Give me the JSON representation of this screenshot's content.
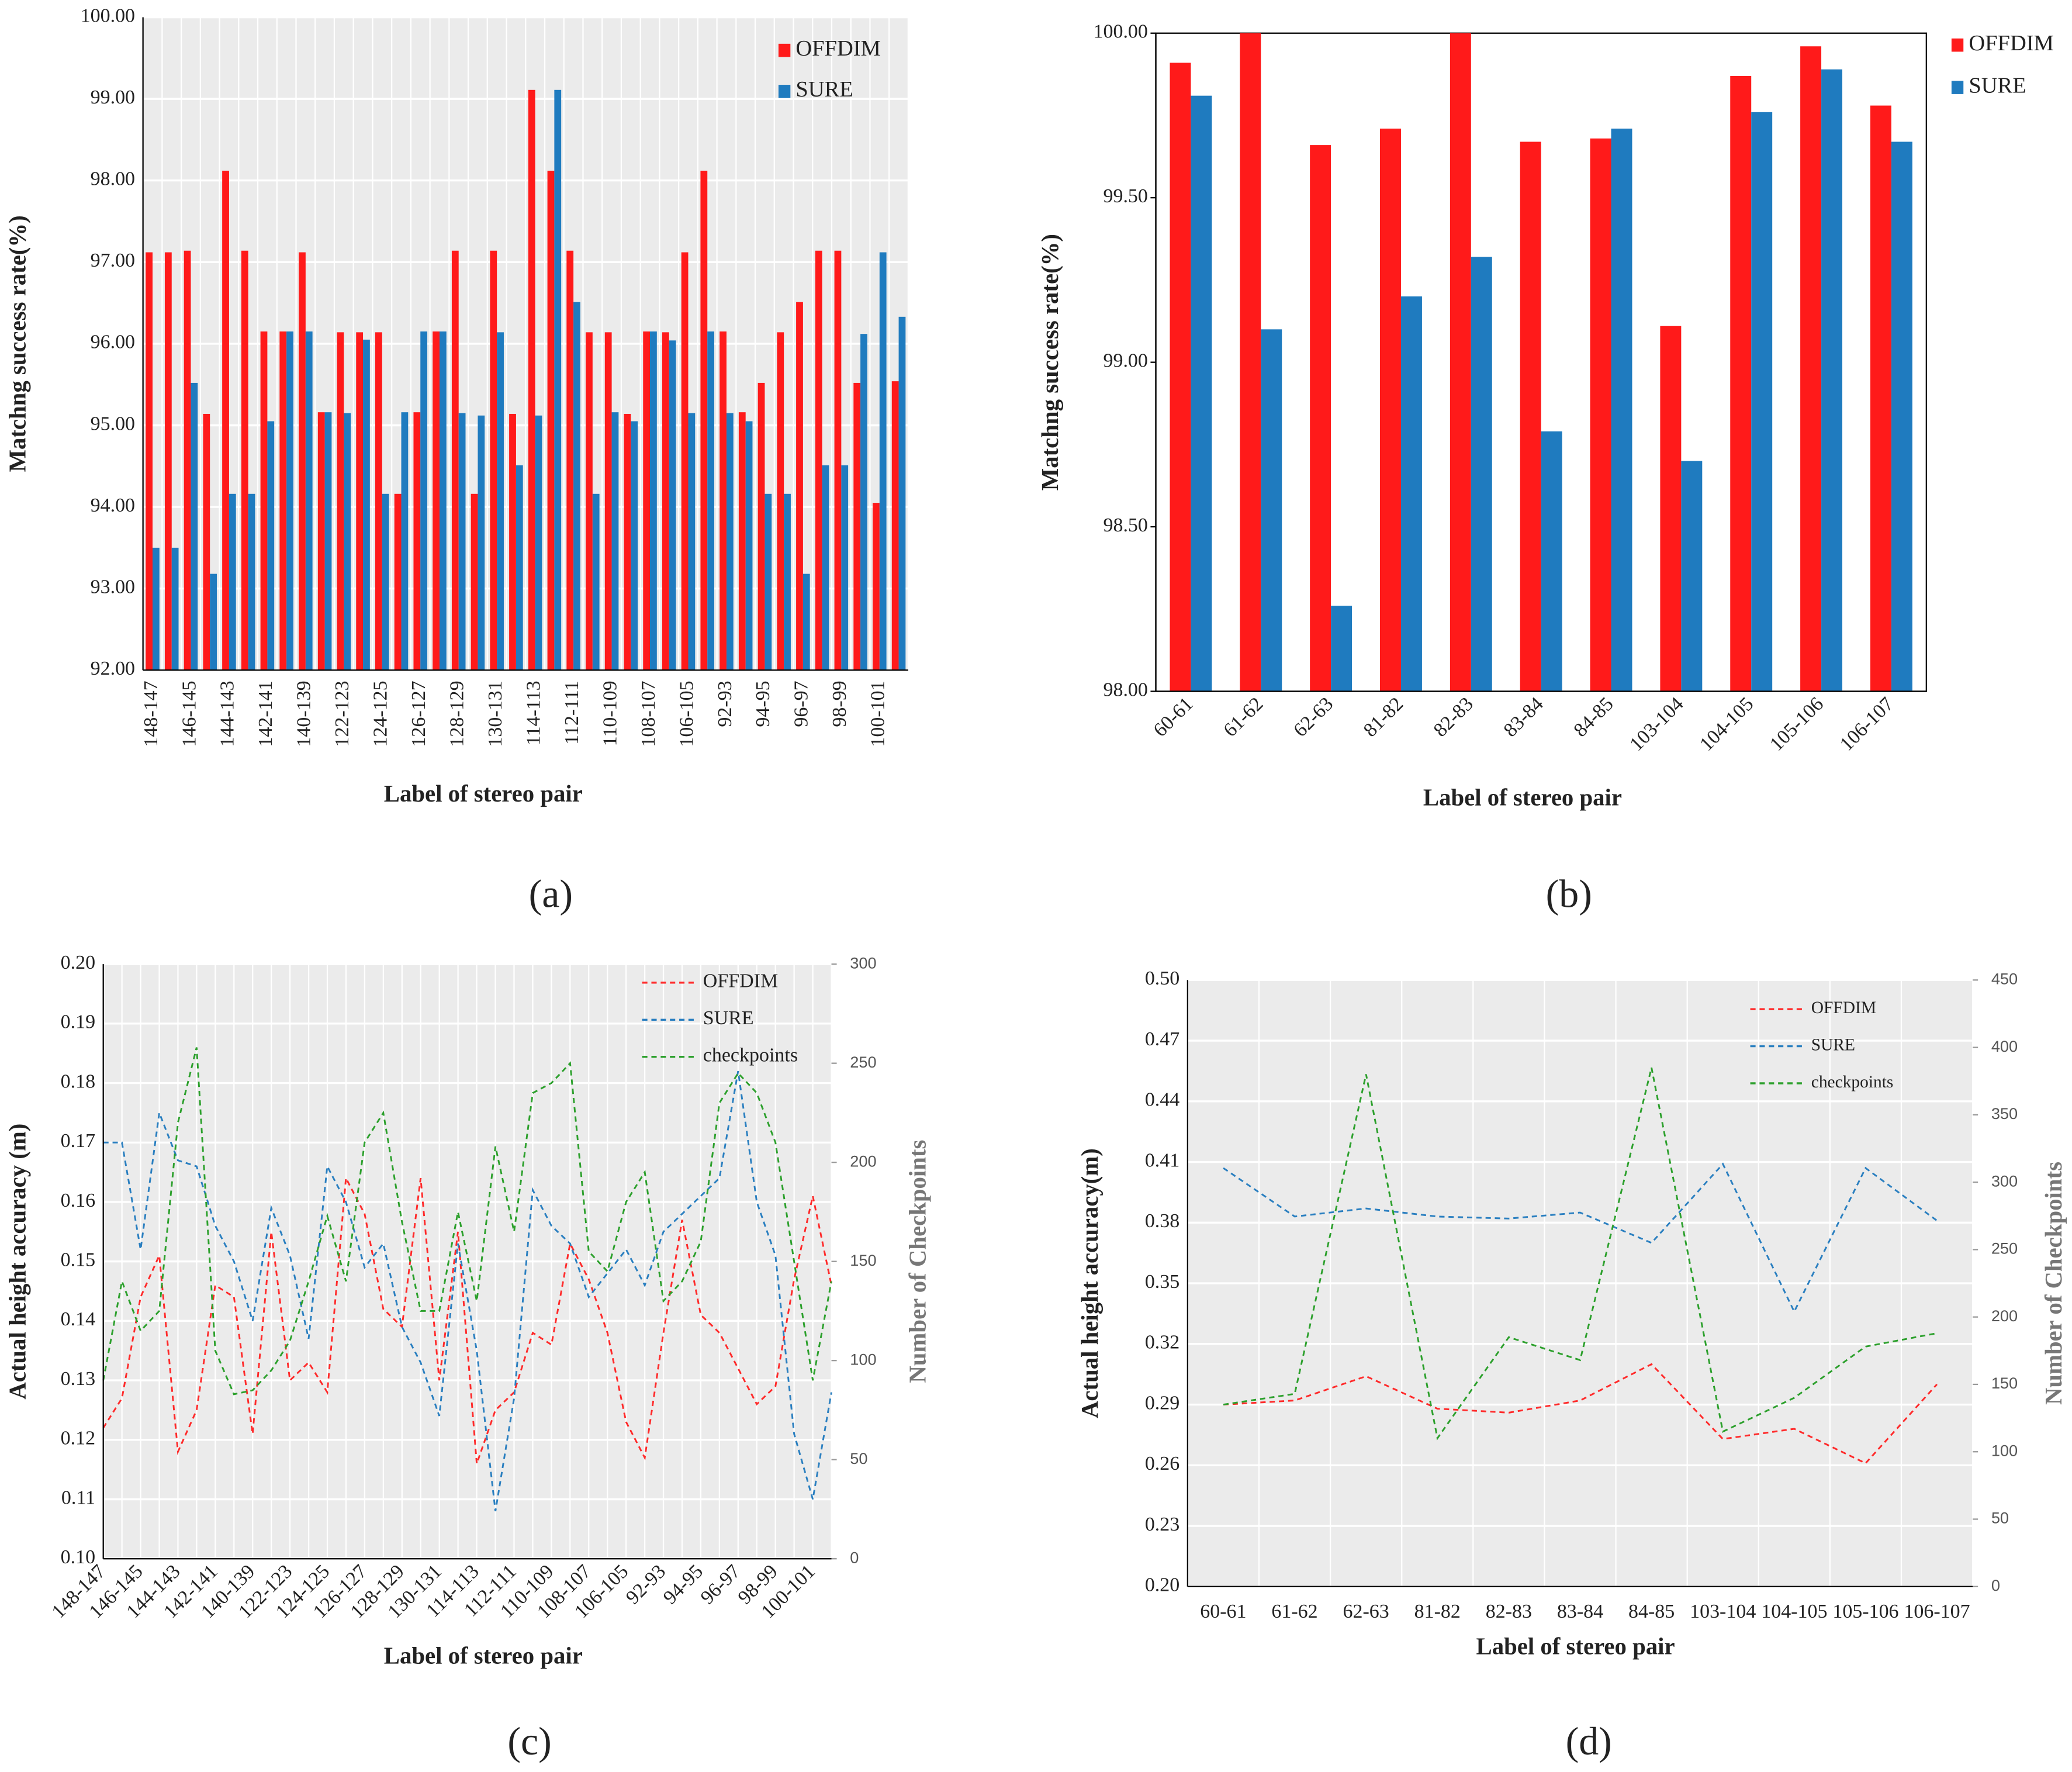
{
  "chart_data": [
    {
      "type": "bar",
      "label": "(a)",
      "xlabel": "Label of stereo pair",
      "ylabel": "Matchng success rate(%)",
      "grid": true,
      "legend": "upper right",
      "categories": [
        "148-147",
        null,
        "146-145",
        null,
        "144-143",
        null,
        "142-141",
        null,
        "140-139",
        null,
        "122-123",
        null,
        "124-125",
        null,
        "126-127",
        null,
        "128-129",
        null,
        "130-131",
        null,
        "114-113",
        null,
        "112-111",
        null,
        "110-109",
        null,
        "108-107",
        null,
        "106-105",
        null,
        "92-93",
        null,
        "94-95",
        null,
        "96-97",
        null,
        "98-99",
        null,
        "100-101",
        null
      ],
      "ylim": [
        92,
        100
      ],
      "yticks": [
        {
          "value": 92,
          "label": "92.00"
        },
        {
          "value": 93,
          "label": "93.00"
        },
        {
          "value": 94,
          "label": "94.00"
        },
        {
          "value": 95,
          "label": "95.00"
        },
        {
          "value": 96,
          "label": "96.00"
        },
        {
          "value": 97,
          "label": "97.00"
        },
        {
          "value": 98,
          "label": "98.00"
        },
        {
          "value": 99,
          "label": "99.00"
        },
        {
          "value": 100,
          "label": "100.00"
        }
      ],
      "series": [
        {
          "name": "OFFDIM",
          "color": "#ff1a1a",
          "values": [
            97.12,
            97.12,
            97.14,
            95.14,
            98.12,
            97.14,
            96.15,
            96.15,
            97.12,
            95.16,
            96.14,
            96.14,
            96.14,
            94.16,
            95.16,
            96.15,
            97.14,
            94.16,
            97.14,
            95.14,
            99.11,
            98.12,
            97.14,
            96.14,
            96.14,
            95.14,
            96.15,
            96.14,
            97.12,
            98.12,
            96.15,
            95.16,
            95.52,
            96.14,
            96.51,
            97.14,
            97.14,
            95.52,
            94.05,
            95.54
          ]
        },
        {
          "name": "SURE",
          "color": "#1f7bbf",
          "values": [
            93.5,
            93.5,
            95.52,
            93.18,
            94.16,
            94.16,
            95.05,
            96.15,
            96.15,
            95.16,
            95.15,
            96.05,
            94.16,
            95.16,
            96.15,
            96.15,
            95.15,
            95.12,
            96.14,
            94.51,
            95.12,
            99.11,
            96.51,
            94.16,
            95.16,
            95.05,
            96.15,
            96.04,
            95.15,
            96.15,
            95.15,
            95.05,
            94.16,
            94.16,
            93.18,
            94.51,
            94.51,
            96.12,
            97.12,
            96.33
          ]
        }
      ]
    },
    {
      "type": "bar",
      "label": "(b)",
      "xlabel": "Label of stereo pair",
      "ylabel": "Matchng success rate(%)",
      "grid": false,
      "legend": "upper right",
      "categories": [
        "60-61",
        "61-62",
        "62-63",
        "81-82",
        "82-83",
        "83-84",
        "84-85",
        "103-104",
        "104-105",
        "105-106",
        "106-107"
      ],
      "ylim": [
        98,
        100
      ],
      "yticks": [
        {
          "value": 98,
          "label": "98.00"
        },
        {
          "value": 98.5,
          "label": "98.50"
        },
        {
          "value": 99,
          "label": "99.00"
        },
        {
          "value": 99.5,
          "label": "99.50"
        },
        {
          "value": 100,
          "label": "100.00"
        }
      ],
      "series": [
        {
          "name": "OFFDIM",
          "color": "#ff1a1a",
          "values": [
            99.91,
            100.0,
            99.66,
            99.71,
            100.0,
            99.67,
            99.68,
            99.11,
            99.87,
            99.96,
            99.78
          ]
        },
        {
          "name": "SURE",
          "color": "#1f7bbf",
          "values": [
            99.81,
            99.1,
            98.26,
            99.2,
            99.32,
            98.79,
            99.71,
            98.7,
            99.76,
            99.89,
            99.67
          ]
        }
      ]
    },
    {
      "type": "line",
      "label": "(c)",
      "xlabel": "Label of stereo pair",
      "ylabel": "Actual height accuracy (m)",
      "y2label": "Number of Checkpoints",
      "grid": true,
      "legend": "upper right",
      "categories": [
        "148-147",
        null,
        "146-145",
        null,
        "144-143",
        null,
        "142-141",
        null,
        "140-139",
        null,
        "122-123",
        null,
        "124-125",
        null,
        "126-127",
        null,
        "128-129",
        null,
        "130-131",
        null,
        "114-113",
        null,
        "112-111",
        null,
        "110-109",
        null,
        "108-107",
        null,
        "106-105",
        null,
        "92-93",
        null,
        "94-95",
        null,
        "96-97",
        null,
        "98-99",
        null,
        "100-101",
        null
      ],
      "ylim": [
        0.1,
        0.2
      ],
      "yticks": [
        {
          "value": 0.1,
          "label": "0.10"
        },
        0.11,
        0.12,
        0.13,
        0.14,
        0.15,
        0.16,
        0.17,
        0.18,
        0.19,
        {
          "value": 0.2,
          "label": "0.20"
        }
      ],
      "y2lim": [
        0,
        300
      ],
      "y2ticks": [
        0,
        50,
        100,
        150,
        200,
        250,
        300
      ],
      "series": [
        {
          "name": "OFFDIM",
          "color": "#ff2a2a",
          "values": [
            0.122,
            0.127,
            0.144,
            0.151,
            0.118,
            0.125,
            0.146,
            0.144,
            0.121,
            0.155,
            0.13,
            0.133,
            0.128,
            0.164,
            0.158,
            0.142,
            0.139,
            0.164,
            0.13,
            0.155,
            0.116,
            0.125,
            0.128,
            0.138,
            0.136,
            0.153,
            0.147,
            0.138,
            0.123,
            0.117,
            0.138,
            0.157,
            0.141,
            0.138,
            0.132,
            0.126,
            0.129,
            0.147,
            0.161,
            0.146
          ]
        },
        {
          "name": "SURE",
          "color": "#2a7fc0",
          "values": [
            0.17,
            0.17,
            0.152,
            0.175,
            0.167,
            0.166,
            0.156,
            0.15,
            0.14,
            0.159,
            0.151,
            0.137,
            0.166,
            0.16,
            0.149,
            0.153,
            0.139,
            0.133,
            0.124,
            0.153,
            0.135,
            0.108,
            0.127,
            0.162,
            0.156,
            0.153,
            0.144,
            0.148,
            0.152,
            0.146,
            0.155,
            0.158,
            0.161,
            0.164,
            0.182,
            0.16,
            0.151,
            0.121,
            0.11,
            0.128
          ]
        },
        {
          "name": "checkpoints",
          "color": "#2ca02c",
          "axis": "y2",
          "values": [
            90,
            140,
            115,
            125,
            220,
            258,
            105,
            83,
            85,
            95,
            110,
            140,
            173,
            140,
            210,
            225,
            170,
            125,
            125,
            175,
            130,
            208,
            165,
            235,
            240,
            250,
            155,
            145,
            180,
            195,
            130,
            140,
            160,
            230,
            245,
            235,
            210,
            150,
            90,
            140
          ]
        }
      ]
    },
    {
      "type": "line",
      "label": "(d)",
      "xlabel": "Label of stereo pair",
      "ylabel": "Actual height accuracy(m)",
      "y2label": "Number of Checkpoints",
      "grid": true,
      "legend": "upper right",
      "categories": [
        "60-61",
        "61-62",
        "62-63",
        "81-82",
        "82-83",
        "83-84",
        "84-85",
        "103-104",
        "104-105",
        "105-106",
        "106-107"
      ],
      "ylim": [
        0.2,
        0.5
      ],
      "yticks": [
        {
          "value": 0.2,
          "label": "0.20"
        },
        0.23,
        0.26,
        0.29,
        0.32,
        0.35,
        0.38,
        0.41,
        0.44,
        0.47,
        {
          "value": 0.5,
          "label": "0.50"
        }
      ],
      "y2lim": [
        0,
        450
      ],
      "y2ticks": [
        0,
        50,
        100,
        150,
        200,
        250,
        300,
        350,
        400,
        450
      ],
      "series": [
        {
          "name": "OFFDIM",
          "color": "#ff2a2a",
          "values": [
            0.29,
            0.292,
            0.304,
            0.288,
            0.286,
            0.292,
            0.31,
            0.273,
            0.278,
            0.261,
            0.3
          ]
        },
        {
          "name": "SURE",
          "color": "#2a7fc0",
          "values": [
            0.407,
            0.383,
            0.387,
            0.383,
            0.382,
            0.385,
            0.37,
            0.409,
            0.336,
            0.407,
            0.381
          ]
        },
        {
          "name": "checkpoints",
          "color": "#2ca02c",
          "axis": "y2",
          "values": [
            135,
            143,
            380,
            110,
            185,
            168,
            385,
            115,
            140,
            178,
            188
          ]
        }
      ]
    }
  ]
}
